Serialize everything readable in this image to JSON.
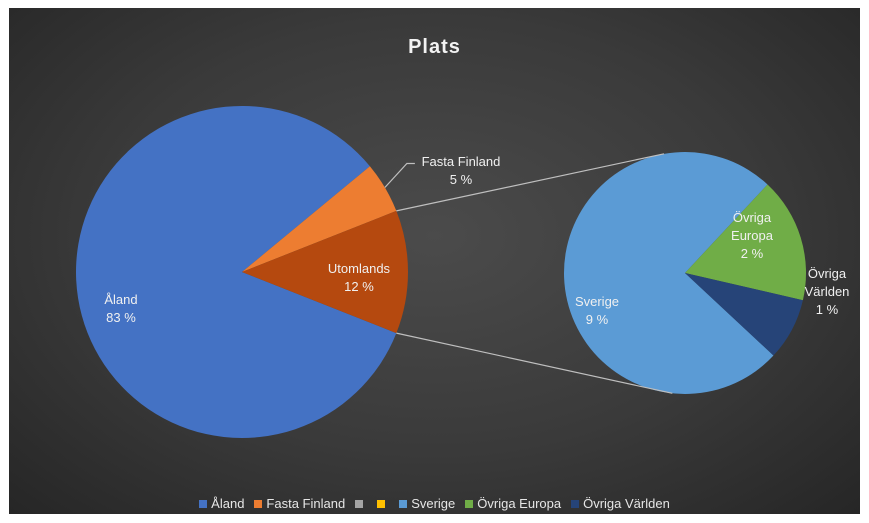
{
  "chart_data": {
    "type": "pie",
    "title": "Plats",
    "slices": [
      {
        "name": "Åland",
        "value": 83,
        "label": "83 %",
        "color": "#4472c4"
      },
      {
        "name": "Fasta Finland",
        "value": 5,
        "label": "5 %",
        "color": "#ed7d31"
      },
      {
        "name": "Utomlands",
        "value": 12,
        "label": "12 %",
        "color": "#b5490f"
      }
    ],
    "secondary_slices": [
      {
        "name": "Sverige",
        "value": 9,
        "label": "9 %",
        "color": "#5b9bd5"
      },
      {
        "name": "Övriga Europa",
        "value": 2,
        "label": "2 %",
        "color": "#70ad47",
        "display_lines": [
          "Övriga",
          "Europa"
        ]
      },
      {
        "name": "Övriga Världen",
        "value": 1,
        "label": "1 %",
        "color": "#264478",
        "display_lines": [
          "Övriga",
          "Världen"
        ]
      }
    ],
    "legend": {
      "position": "bottom",
      "entries": [
        {
          "name": "Åland",
          "color": "#4472c4"
        },
        {
          "name": "Fasta Finland",
          "color": "#ed7d31"
        },
        {
          "name": "",
          "color": "#a5a5a5"
        },
        {
          "name": "",
          "color": "#ffc000"
        },
        {
          "name": "Sverige",
          "color": "#5b9bd5"
        },
        {
          "name": "Övriga Europa",
          "color": "#70ad47"
        },
        {
          "name": "Övriga Världen",
          "color": "#264478"
        }
      ]
    }
  }
}
